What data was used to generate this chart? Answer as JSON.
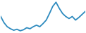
{
  "values": [
    72,
    60,
    52,
    48,
    45,
    47,
    44,
    46,
    50,
    48,
    52,
    55,
    52,
    58,
    65,
    78,
    92,
    100,
    88,
    78,
    72,
    68,
    72,
    65,
    70,
    76,
    82
  ],
  "line_color": "#2e8bbf",
  "background_color": "#ffffff",
  "linewidth": 1.3
}
